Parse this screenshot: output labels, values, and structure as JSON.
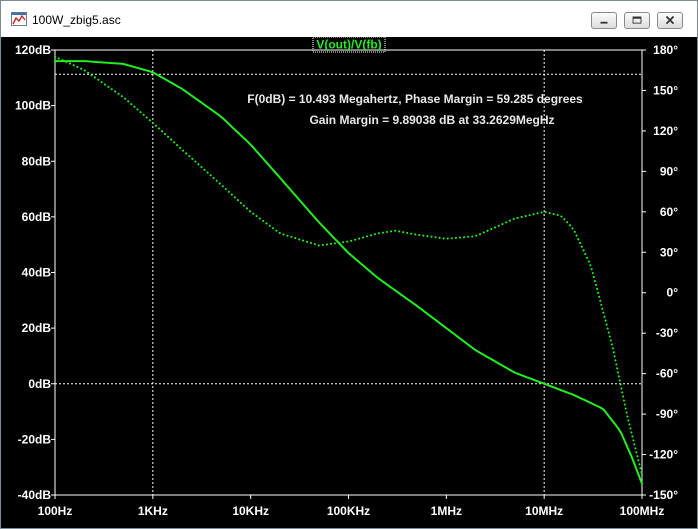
{
  "window": {
    "title": "100W_zbig5.asc",
    "icon": "waveform-icon",
    "buttons": [
      "minimize-icon",
      "maximize-icon",
      "close-icon"
    ]
  },
  "chart_data": {
    "type": "line",
    "title": "V(out)/V(fb)",
    "x_scale": "log",
    "xlim_hz": [
      100,
      100000000
    ],
    "x_ticks": [
      {
        "value": 100,
        "label": "100Hz"
      },
      {
        "value": 1000,
        "label": "1KHz"
      },
      {
        "value": 10000,
        "label": "10KHz"
      },
      {
        "value": 100000,
        "label": "100KHz"
      },
      {
        "value": 1000000,
        "label": "1MHz"
      },
      {
        "value": 10000000,
        "label": "10MHz"
      },
      {
        "value": 100000000,
        "label": "100MHz"
      }
    ],
    "y_left": {
      "range": [
        -40,
        120
      ],
      "ticks": [
        {
          "value": 120,
          "label": "120dB"
        },
        {
          "value": 100,
          "label": "100dB"
        },
        {
          "value": 80,
          "label": "80dB"
        },
        {
          "value": 60,
          "label": "60dB"
        },
        {
          "value": 40,
          "label": "40dB"
        },
        {
          "value": 20,
          "label": "20dB"
        },
        {
          "value": 0,
          "label": "0dB"
        },
        {
          "value": -20,
          "label": "-20dB"
        },
        {
          "value": -40,
          "label": "-40dB"
        }
      ]
    },
    "y_right": {
      "range": [
        -150,
        180
      ],
      "ticks": [
        {
          "value": 180,
          "label": "180°"
        },
        {
          "value": 150,
          "label": "150°"
        },
        {
          "value": 120,
          "label": "120°"
        },
        {
          "value": 90,
          "label": "90°"
        },
        {
          "value": 60,
          "label": "60°"
        },
        {
          "value": 30,
          "label": "30°"
        },
        {
          "value": 0,
          "label": "0°"
        },
        {
          "value": -30,
          "label": "-30°"
        },
        {
          "value": -60,
          "label": "-60°"
        },
        {
          "value": -90,
          "label": "-90°"
        },
        {
          "value": -120,
          "label": "-120°"
        },
        {
          "value": -150,
          "label": "-150°"
        }
      ]
    },
    "dashed_gridlines": {
      "x_hz": [
        1000,
        10000000
      ],
      "y_left_db": [
        0
      ],
      "y_right_deg": [
        162
      ]
    },
    "annotations": [
      "F(0dB) = 10.493 Megahertz, Phase Margin = 59.285 degrees",
      "Gain Margin = 9.89038 dB at 33.2629MegHz"
    ],
    "colors": {
      "trace": "#22ee22",
      "grid": "#ffffff",
      "axis_text": "#ffffff",
      "background": "#000000"
    },
    "series": [
      {
        "quantity": "magnitude_db",
        "style": "solid",
        "x": [
          100,
          200,
          500,
          1000,
          2000,
          5000,
          10000,
          20000,
          50000,
          100000,
          200000,
          500000,
          1000000,
          2000000,
          5000000,
          10000000,
          20000000,
          40000000,
          60000000,
          80000000,
          100000000
        ],
        "y": [
          116,
          116,
          115,
          112,
          106,
          96,
          86,
          74,
          58,
          47,
          38,
          28,
          20,
          12,
          4,
          0,
          -4,
          -9,
          -17,
          -27,
          -36
        ]
      },
      {
        "quantity": "phase_deg",
        "style": "dotted",
        "x": [
          100,
          200,
          500,
          1000,
          2000,
          5000,
          10000,
          20000,
          50000,
          100000,
          200000,
          300000,
          500000,
          1000000,
          2000000,
          5000000,
          10000000,
          15000000,
          20000000,
          30000000,
          50000000,
          70000000,
          100000000
        ],
        "y": [
          175,
          165,
          145,
          126,
          106,
          80,
          60,
          44,
          35,
          38,
          44,
          46,
          43,
          40,
          42,
          55,
          60,
          57,
          47,
          20,
          -40,
          -90,
          -135
        ]
      }
    ]
  }
}
